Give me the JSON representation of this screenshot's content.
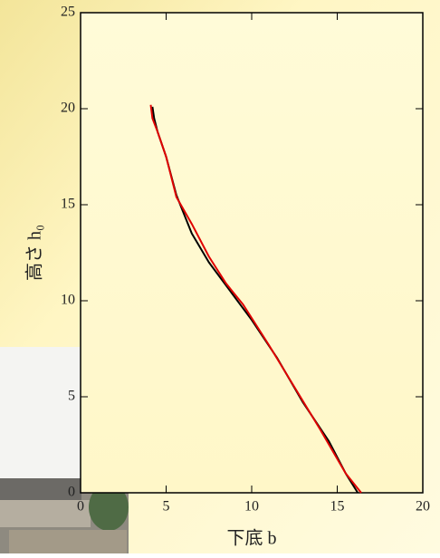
{
  "chart_data": {
    "type": "line",
    "x_label": "下底 b",
    "y_label": "高さ h₀",
    "xlim": [
      0,
      20
    ],
    "xticks": [
      0,
      5,
      10,
      15,
      20
    ],
    "ylim": [
      0,
      25
    ],
    "yticks": [
      0,
      5,
      10,
      15,
      20,
      25
    ],
    "series": [
      {
        "color": "#000000",
        "x": [
          4.2,
          4.3,
          4.5,
          5.0,
          5.6,
          6.5,
          7.5,
          8.5,
          10.0,
          11.5,
          13.0,
          14.5,
          15.5,
          16.2
        ],
        "values": [
          20.1,
          19.5,
          18.8,
          17.5,
          15.5,
          13.5,
          12.0,
          10.8,
          9.0,
          7.0,
          4.7,
          2.7,
          1.0,
          0
        ]
      },
      {
        "color": "#e00000",
        "x": [
          4.1,
          4.2,
          4.5,
          5.0,
          5.6,
          6.5,
          7.5,
          8.5,
          9.5,
          11.0,
          12.5,
          14.0,
          15.5,
          16.4
        ],
        "values": [
          20.2,
          19.5,
          18.8,
          17.5,
          15.4,
          14.0,
          12.3,
          10.9,
          9.8,
          7.7,
          5.5,
          3.3,
          1.0,
          0
        ]
      }
    ]
  }
}
